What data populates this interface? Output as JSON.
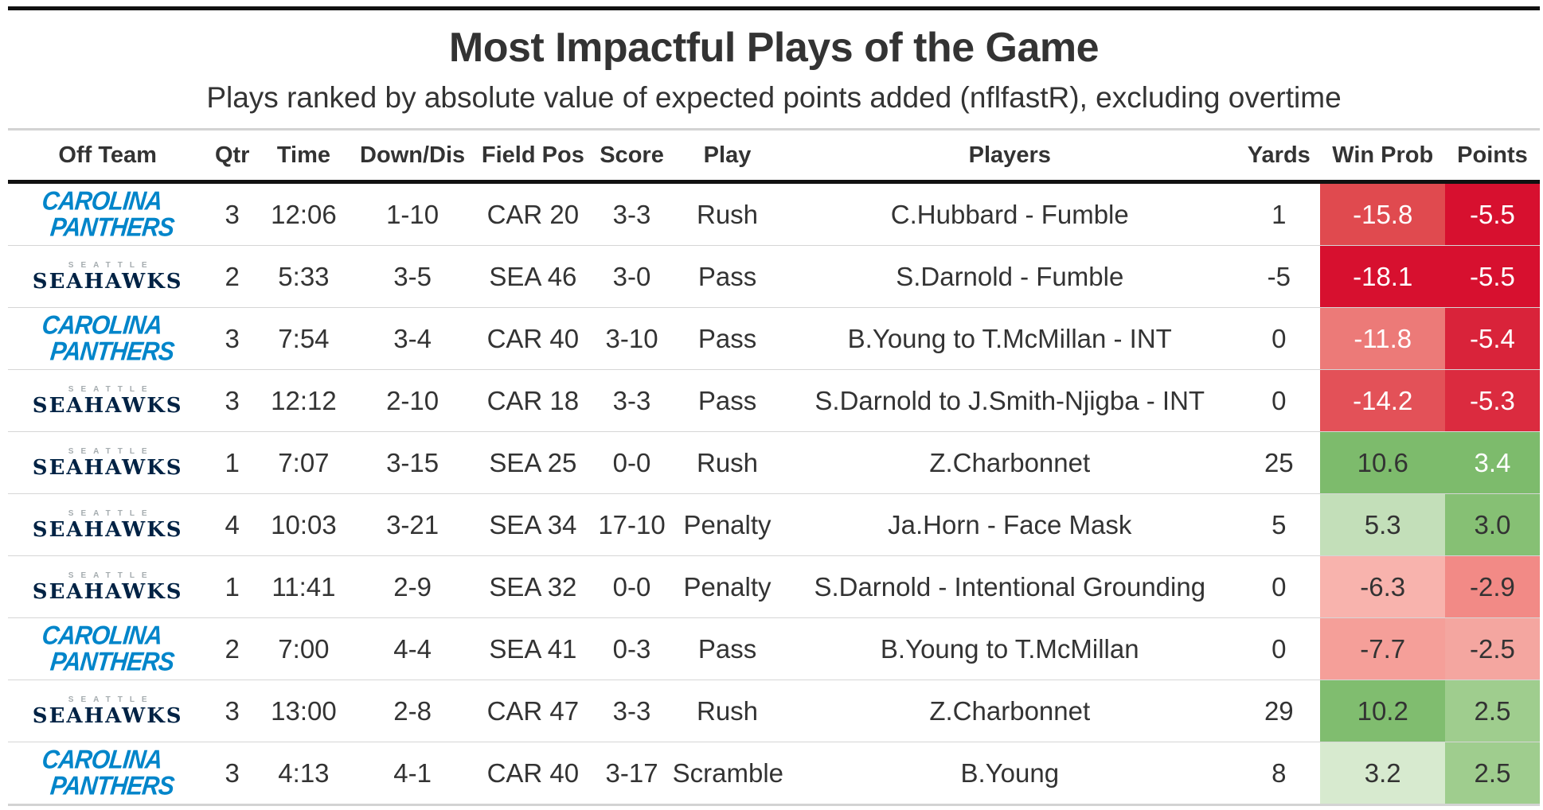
{
  "title": "Most Impactful Plays of the Game",
  "subtitle": "Plays ranked by absolute value of expected points added (nflfastR), excluding overtime",
  "columns": {
    "off_team": "Off Team",
    "qtr": "Qtr",
    "time": "Time",
    "down": "Down/Dis",
    "field": "Field Pos",
    "score": "Score",
    "play": "Play",
    "players": "Players",
    "yards": "Yards",
    "wp": "Win Prob",
    "points": "Points"
  },
  "logos": {
    "CAR": {
      "line1": "CAROLINA",
      "line2": "PANTHERS",
      "color": "#0085ca"
    },
    "SEA": {
      "line1": "SEATTLE",
      "line2": "SEAHAWKS",
      "color": "#002244"
    }
  },
  "rows": [
    {
      "team": "CAR",
      "qtr": "3",
      "time": "12:06",
      "down": "1-10",
      "field": "CAR 20",
      "score": "3-3",
      "play": "Rush",
      "players": "C.Hubbard - Fumble",
      "yards": "1",
      "wp": "-15.8",
      "points": "-5.5"
    },
    {
      "team": "SEA",
      "qtr": "2",
      "time": "5:33",
      "down": "3-5",
      "field": "SEA 46",
      "score": "3-0",
      "play": "Pass",
      "players": "S.Darnold - Fumble",
      "yards": "-5",
      "wp": "-18.1",
      "points": "-5.5"
    },
    {
      "team": "CAR",
      "qtr": "3",
      "time": "7:54",
      "down": "3-4",
      "field": "CAR 40",
      "score": "3-10",
      "play": "Pass",
      "players": "B.Young to T.McMillan - INT",
      "yards": "0",
      "wp": "-11.8",
      "points": "-5.4"
    },
    {
      "team": "SEA",
      "qtr": "3",
      "time": "12:12",
      "down": "2-10",
      "field": "CAR 18",
      "score": "3-3",
      "play": "Pass",
      "players": "S.Darnold to J.Smith-Njigba - INT",
      "yards": "0",
      "wp": "-14.2",
      "points": "-5.3"
    },
    {
      "team": "SEA",
      "qtr": "1",
      "time": "7:07",
      "down": "3-15",
      "field": "SEA 25",
      "score": "0-0",
      "play": "Rush",
      "players": "Z.Charbonnet",
      "yards": "25",
      "wp": "10.6",
      "points": "3.4"
    },
    {
      "team": "SEA",
      "qtr": "4",
      "time": "10:03",
      "down": "3-21",
      "field": "SEA 34",
      "score": "17-10",
      "play": "Penalty",
      "players": "Ja.Horn - Face Mask",
      "yards": "5",
      "wp": "5.3",
      "points": "3.0"
    },
    {
      "team": "SEA",
      "qtr": "1",
      "time": "11:41",
      "down": "2-9",
      "field": "SEA 32",
      "score": "0-0",
      "play": "Penalty",
      "players": "S.Darnold - Intentional Grounding",
      "yards": "0",
      "wp": "-6.3",
      "points": "-2.9"
    },
    {
      "team": "CAR",
      "qtr": "2",
      "time": "7:00",
      "down": "4-4",
      "field": "SEA 41",
      "score": "0-3",
      "play": "Pass",
      "players": "B.Young to T.McMillan",
      "yards": "0",
      "wp": "-7.7",
      "points": "-2.5"
    },
    {
      "team": "SEA",
      "qtr": "3",
      "time": "13:00",
      "down": "2-8",
      "field": "CAR 47",
      "score": "3-3",
      "play": "Rush",
      "players": "Z.Charbonnet",
      "yards": "29",
      "wp": "10.2",
      "points": "2.5"
    },
    {
      "team": "CAR",
      "qtr": "3",
      "time": "4:13",
      "down": "4-1",
      "field": "CAR 40",
      "score": "3-17",
      "play": "Scramble",
      "players": "B.Young",
      "yards": "8",
      "wp": "3.2",
      "points": "2.5"
    }
  ],
  "cell_colors": [
    {
      "wp": "#e04a4f",
      "points": "#d7102f"
    },
    {
      "wp": "#d7102f",
      "points": "#d7102f"
    },
    {
      "wp": "#ec7a78",
      "points": "#d9233a"
    },
    {
      "wp": "#e35158",
      "points": "#db2b3f"
    },
    {
      "wp": "#7dbb6c",
      "points": "#7dbb6c"
    },
    {
      "wp": "#c3dfb9",
      "points": "#86c074"
    },
    {
      "wp": "#f8b3ad",
      "points": "#f28a86"
    },
    {
      "wp": "#f59f99",
      "points": "#f4a6a0"
    },
    {
      "wp": "#80bd6f",
      "points": "#9fcd8e"
    },
    {
      "wp": "#d7eacf",
      "points": "#9fcd8e"
    }
  ],
  "text_colors": {
    "dark": "#333333",
    "light": "#ffffff"
  }
}
